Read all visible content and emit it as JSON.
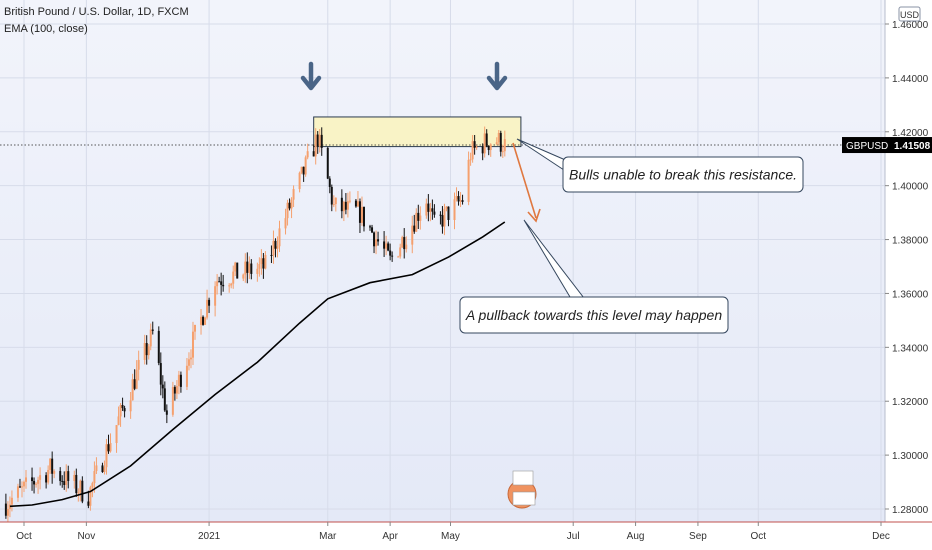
{
  "header": {
    "title": "British Pound / U.S. Dollar, 1D, FXCM",
    "indicator": "EMA (100, close)"
  },
  "currency_badge": "USD",
  "price_tag": {
    "symbol": "GBPUSD",
    "price": "1.41508"
  },
  "annotations": {
    "resistance": "Bulls unable to break this resistance.",
    "pullback": "A pullback towards this level may happen"
  },
  "colors": {
    "background": "#e4e9f7",
    "candle_up": "#f5a06e",
    "candle_down": "#111111",
    "ema": "#000000",
    "resistance_fill": "#f9f3c6",
    "resistance_border": "#2a3a4e",
    "arrow": "#4a6587",
    "projection_arrow": "#e07840"
  },
  "chart_data": {
    "type": "candlestick",
    "symbol": "GBPUSD",
    "interval": "1D",
    "y_ticks": [
      "1.46000",
      "1.44000",
      "1.42000",
      "1.40000",
      "1.38000",
      "1.36000",
      "1.34000",
      "1.32000",
      "1.30000",
      "1.28000"
    ],
    "x_ticks": [
      "Oct",
      "Nov",
      "2021",
      "Mar",
      "Apr",
      "May",
      "Jul",
      "Aug",
      "Sep",
      "Oct",
      "Dec"
    ],
    "ylim": [
      1.274,
      1.466
    ],
    "last_price": 1.41508,
    "ema_period": 100,
    "ema_points": [
      [
        "Sep 24",
        1.281
      ],
      [
        "Oct 5",
        1.2815
      ],
      [
        "Oct 20",
        1.2835
      ],
      [
        "Nov 3",
        1.2865
      ],
      [
        "Nov 23",
        1.296
      ],
      [
        "Dec 14",
        1.3095
      ],
      [
        "Jan 4",
        1.3225
      ],
      [
        "Jan 25",
        1.3345
      ],
      [
        "Feb 15",
        1.349
      ],
      [
        "Mar 1",
        1.358
      ],
      [
        "Mar 22",
        1.364
      ],
      [
        "Apr 12",
        1.367
      ],
      [
        "Apr 30",
        1.3735
      ],
      [
        "May 17",
        1.381
      ],
      [
        "May 28",
        1.3865
      ]
    ],
    "resistance_zone": {
      "from": "Feb 22",
      "to": "Jun 5",
      "low": 1.4145,
      "high": 1.4255
    },
    "trend_points": [
      [
        "Sep 22",
        1.282
      ],
      [
        "Oct 14",
        1.295
      ],
      [
        "Nov 2",
        1.285
      ],
      [
        "Dec 4",
        1.345
      ],
      [
        "Dec 11",
        1.315
      ],
      [
        "Jan 4",
        1.365
      ],
      [
        "Jan 29",
        1.37
      ],
      [
        "Feb 24",
        1.418
      ],
      [
        "Mar 4",
        1.392
      ],
      [
        "Mar 17",
        1.39
      ],
      [
        "Apr 1",
        1.372
      ],
      [
        "Apr 19",
        1.395
      ],
      [
        "Apr 23",
        1.385
      ],
      [
        "May 7",
        1.395
      ],
      [
        "May 11",
        1.412
      ],
      [
        "May 18",
        1.416
      ],
      [
        "May 24",
        1.417
      ],
      [
        "May 28",
        1.415
      ]
    ]
  }
}
